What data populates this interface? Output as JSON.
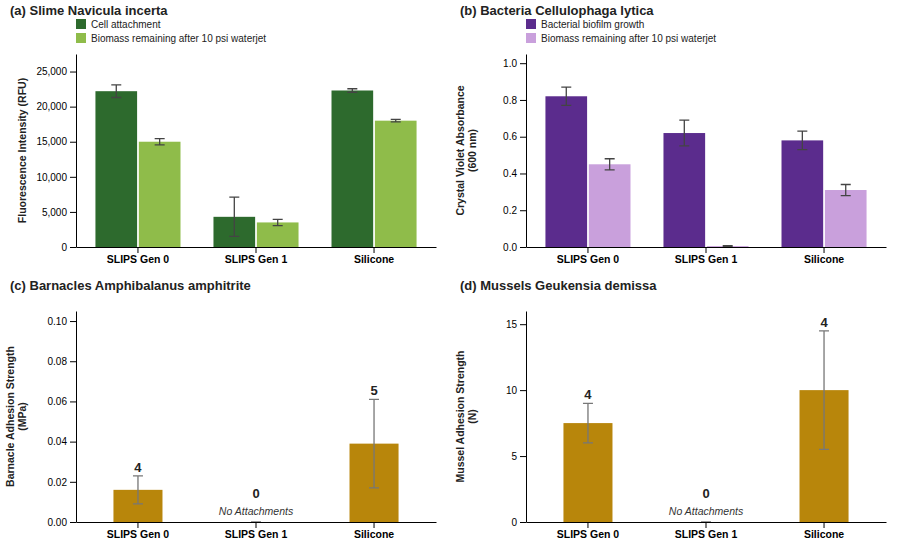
{
  "chart_data": [
    {
      "type": "bar",
      "title": "(a) Slime Navicula incerta",
      "ylabel": "Fluorescence Intensity (RFU)",
      "categories": [
        "SLIPS Gen 0",
        "SLIPS Gen 1",
        "Silicone"
      ],
      "series": [
        {
          "name": "Cell attachment",
          "color": "#2d6a2d",
          "values": [
            22200,
            4300,
            22300
          ],
          "errors": [
            900,
            2800,
            250
          ]
        },
        {
          "name": "Biomass remaining after 10 psi waterjet",
          "color": "#8fbc4a",
          "values": [
            15000,
            3500,
            18000
          ],
          "errors": [
            450,
            450,
            180
          ]
        }
      ],
      "ylim": [
        0,
        27500
      ],
      "yticks": [
        0,
        {
          "value": 5000,
          "label": "5,000"
        },
        {
          "value": 10000,
          "label": "10,000"
        },
        {
          "value": 15000,
          "label": "15,000"
        },
        {
          "value": 20000,
          "label": "20,000"
        },
        {
          "value": 25000,
          "label": "25,000"
        }
      ],
      "grid": false,
      "legend": "upper left"
    },
    {
      "type": "bar",
      "title": "(b) Bacteria Cellulophaga lytica",
      "ylabel": "Crystal Violet Absorbance\n(600 nm)",
      "categories": [
        "SLIPS Gen 0",
        "SLIPS Gen 1",
        "Silicone"
      ],
      "series": [
        {
          "name": "Bacterial biofilm growth",
          "color": "#5b2c8d",
          "values": [
            0.82,
            0.62,
            0.58
          ],
          "errors": [
            0.05,
            0.07,
            0.05
          ]
        },
        {
          "name": "Biomass remaining after 10 psi waterjet",
          "color": "#c9a0dc",
          "values": [
            0.45,
            0.005,
            0.31
          ],
          "errors": [
            0.03,
            0.002,
            0.03
          ]
        }
      ],
      "ylim": [
        0,
        1.05
      ],
      "yticks": [
        {
          "value": 0.0,
          "label": "0.0"
        },
        0.2,
        0.4,
        0.6,
        0.8,
        {
          "value": 1.0,
          "label": "1.0"
        }
      ],
      "grid": false,
      "legend": "upper left"
    },
    {
      "type": "bar",
      "title": "(c) Barnacles Amphibalanus amphitrite",
      "ylabel": "Barnacle Adhesion Strength\n(MPa)",
      "categories": [
        "SLIPS Gen 0",
        "SLIPS Gen 1",
        "Silicone"
      ],
      "values": [
        0.016,
        0.0,
        0.039
      ],
      "errors": [
        0.007,
        0.0,
        0.022
      ],
      "color": "#b8860b",
      "counts": [
        4,
        0,
        5
      ],
      "annotations": [
        {
          "text": "No Attachments",
          "x": "SLIPS Gen 1"
        }
      ],
      "ylim": [
        0,
        0.105
      ],
      "yticks": [
        {
          "value": 0.0,
          "label": "0.00"
        },
        {
          "value": 0.02,
          "label": "0.02"
        },
        {
          "value": 0.04,
          "label": "0.04"
        },
        {
          "value": 0.06,
          "label": "0.06"
        },
        {
          "value": 0.08,
          "label": "0.08"
        },
        {
          "value": 0.1,
          "label": "0.10"
        }
      ],
      "grid": false
    },
    {
      "type": "bar",
      "title": "(d) Mussels Geukensia demissa",
      "ylabel": "Mussel Adhesion Strength\n(N)",
      "categories": [
        "SLIPS Gen 0",
        "SLIPS Gen 1",
        "Silicone"
      ],
      "values": [
        7.5,
        0.0,
        10.0
      ],
      "errors": [
        1.5,
        0.0,
        4.5
      ],
      "color": "#b8860b",
      "counts": [
        4,
        0,
        4
      ],
      "annotations": [
        {
          "text": "No Attachments",
          "x": "SLIPS Gen 1"
        }
      ],
      "ylim": [
        0,
        16
      ],
      "yticks": [
        0,
        5,
        10,
        15
      ],
      "grid": false
    }
  ]
}
